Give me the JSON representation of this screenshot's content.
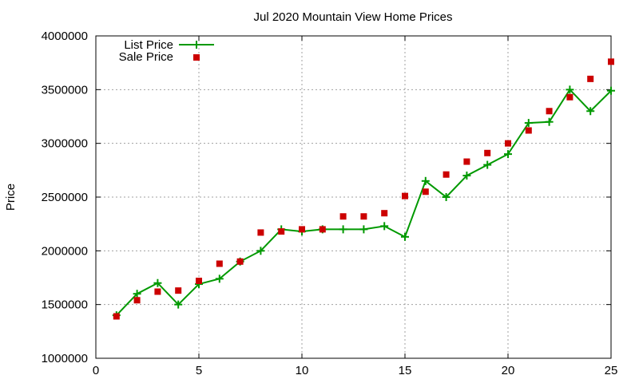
{
  "chart_data": {
    "type": "line",
    "title": "Jul 2020 Mountain View Home Prices",
    "xlabel": "",
    "ylabel": "Price",
    "xlim": [
      0,
      25
    ],
    "ylim": [
      1000000,
      4000000
    ],
    "x_ticks": [
      0,
      5,
      10,
      15,
      20,
      25
    ],
    "y_ticks": [
      1000000,
      1500000,
      2000000,
      2500000,
      3000000,
      3500000,
      4000000
    ],
    "grid": true,
    "legend_position": "top-left",
    "series": [
      {
        "name": "List Price",
        "kind": "line-with-plus-markers",
        "color": "#009900",
        "x": [
          1,
          2,
          3,
          4,
          5,
          6,
          7,
          8,
          9,
          10,
          11,
          12,
          13,
          14,
          15,
          16,
          17,
          18,
          19,
          20,
          21,
          22,
          23,
          24,
          25
        ],
        "y": [
          1400000,
          1600000,
          1700000,
          1500000,
          1690000,
          1740000,
          1900000,
          2000000,
          2200000,
          2180000,
          2200000,
          2200000,
          2200000,
          2230000,
          2130000,
          2650000,
          2500000,
          2700000,
          2800000,
          2900000,
          3190000,
          3200000,
          3500000,
          3300000,
          3490000
        ]
      },
      {
        "name": "Sale Price",
        "kind": "square-markers",
        "color": "#cc0000",
        "x": [
          1,
          2,
          3,
          4,
          5,
          6,
          7,
          8,
          9,
          10,
          11,
          12,
          13,
          14,
          15,
          16,
          17,
          18,
          19,
          20,
          21,
          22,
          23,
          24,
          25
        ],
        "y": [
          1390000,
          1540000,
          1620000,
          1630000,
          1720000,
          1880000,
          1900000,
          2170000,
          2180000,
          2200000,
          2200000,
          2320000,
          2320000,
          2350000,
          2510000,
          2550000,
          2710000,
          2830000,
          2910000,
          3000000,
          3120000,
          3300000,
          3430000,
          3600000,
          3760000
        ]
      }
    ]
  }
}
